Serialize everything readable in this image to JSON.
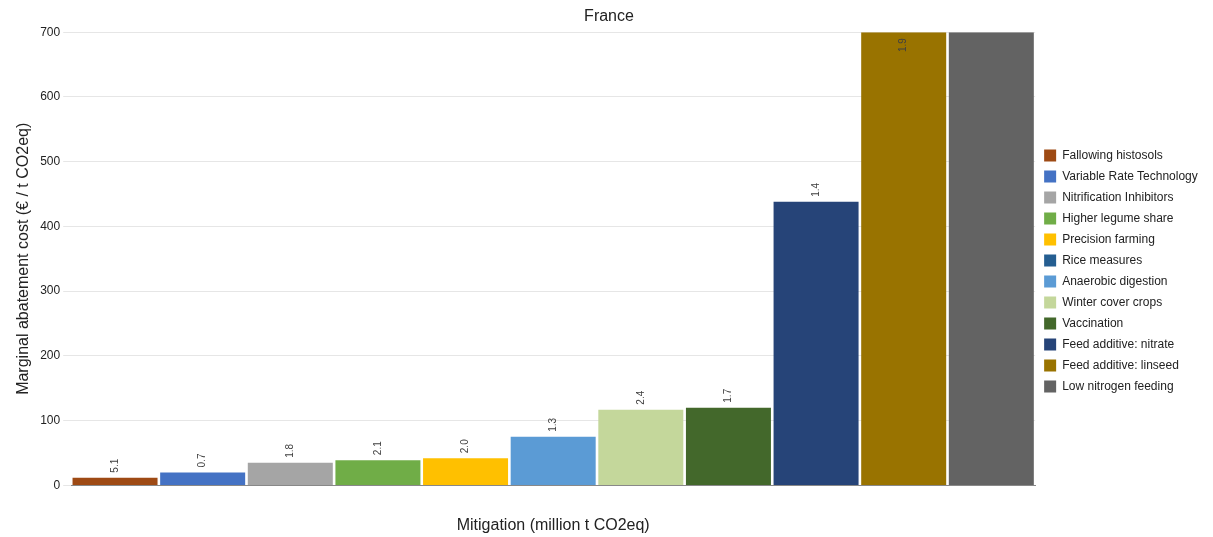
{
  "chart_data": {
    "type": "bar",
    "stacked": true,
    "title": "France",
    "xlabel": "Mitigation (million t CO2eq)",
    "ylabel": "Marginal abatement cost (€ / t CO2eq)",
    "categories": [
      null,
      null,
      null,
      null,
      null,
      null,
      null,
      null,
      null,
      null,
      null
    ],
    "ylim": [
      0,
      700
    ],
    "yticks": [
      0,
      100,
      200,
      300,
      400,
      500,
      600,
      700
    ],
    "grid": "y",
    "legend": "right",
    "series": [
      {
        "name": "Fallowing histosols",
        "color": "#9e4a14",
        "values": [
          12,
          null,
          null,
          null,
          null,
          null,
          null,
          null,
          null,
          null,
          null
        ]
      },
      {
        "name": "Variable Rate Technology",
        "color": "#4472c4",
        "values": [
          null,
          20,
          null,
          null,
          null,
          null,
          null,
          null,
          null,
          null,
          null
        ]
      },
      {
        "name": "Nitrification Inhibitors",
        "color": "#a5a5a5",
        "values": [
          null,
          null,
          35,
          null,
          null,
          null,
          null,
          null,
          null,
          null,
          null
        ]
      },
      {
        "name": "Higher legume share",
        "color": "#70ad47",
        "values": [
          null,
          null,
          null,
          39,
          null,
          null,
          null,
          null,
          null,
          null,
          null
        ]
      },
      {
        "name": "Precision farming",
        "color": "#ffc000",
        "values": [
          null,
          null,
          null,
          null,
          42,
          null,
          null,
          null,
          null,
          null,
          null
        ]
      },
      {
        "name": "Rice measures",
        "color": "#255e91",
        "values": [
          null,
          null,
          null,
          null,
          null,
          null,
          null,
          null,
          null,
          null,
          null
        ]
      },
      {
        "name": "Anaerobic digestion",
        "color": "#5b9bd5",
        "values": [
          null,
          null,
          null,
          null,
          null,
          75,
          null,
          null,
          null,
          null,
          null
        ]
      },
      {
        "name": "Winter cover crops",
        "color": "#c4d79b",
        "values": [
          null,
          null,
          null,
          null,
          null,
          null,
          117,
          null,
          null,
          null,
          null
        ]
      },
      {
        "name": "Vaccination",
        "color": "#43682b",
        "values": [
          null,
          null,
          null,
          null,
          null,
          null,
          null,
          120,
          null,
          null,
          null
        ]
      },
      {
        "name": "Feed additive: nitrate",
        "color": "#264478",
        "values": [
          null,
          null,
          null,
          null,
          null,
          null,
          null,
          null,
          438,
          null,
          null
        ]
      },
      {
        "name": "Feed additive: linseed",
        "color": "#997300",
        "values": [
          null,
          null,
          null,
          null,
          null,
          null,
          null,
          null,
          null,
          700,
          null
        ]
      },
      {
        "name": "Low nitrogen feeding",
        "color": "#636363",
        "values": [
          null,
          null,
          null,
          null,
          null,
          null,
          null,
          null,
          null,
          null,
          700
        ]
      }
    ],
    "annotations": [
      {
        "text": "5.1",
        "y": 12
      },
      {
        "text": "0.7",
        "y": 20
      },
      {
        "text": "1.8",
        "y": 35
      },
      {
        "text": "2.1",
        "y": 39
      },
      {
        "text": "2.0",
        "y": 42
      },
      {
        "text": "1.3",
        "y": 75
      },
      {
        "text": "2.4",
        "y": 117
      },
      {
        "text": "1.7",
        "y": 120
      },
      {
        "text": "1.4",
        "y": 438
      },
      {
        "text": "1.9",
        "y": 700
      }
    ]
  }
}
